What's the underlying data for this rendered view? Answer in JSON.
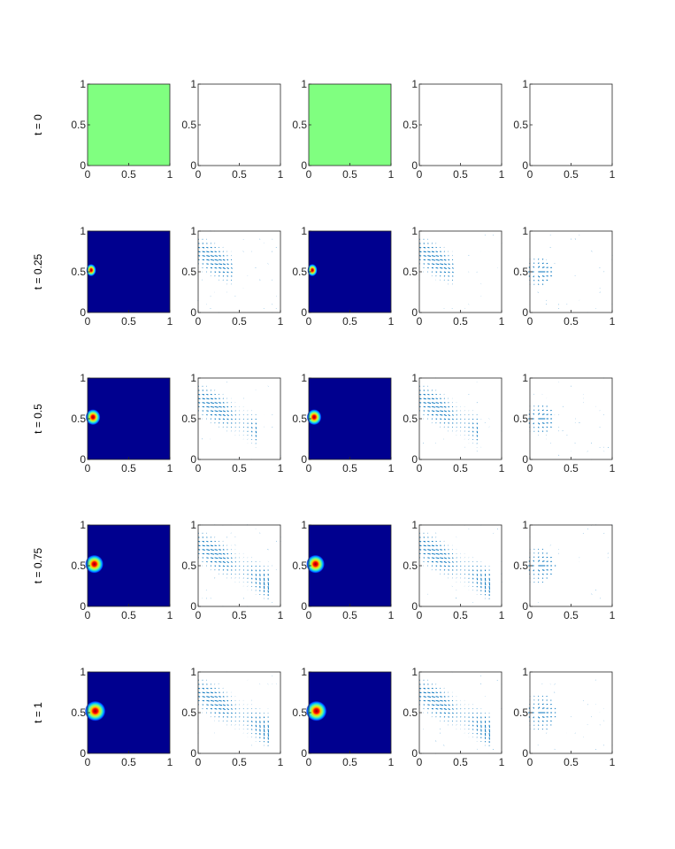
{
  "chart_data": {
    "type": "image-grid",
    "title": "",
    "rows": [
      {
        "label": "t = 0",
        "t": 0
      },
      {
        "label": "t = 0.25",
        "t": 0.25
      },
      {
        "label": "t = 0.5",
        "t": 0.5
      },
      {
        "label": "t = 0.75",
        "t": 0.75
      },
      {
        "label": "t = 1",
        "t": 1
      }
    ],
    "columns": [
      {
        "kind": "field"
      },
      {
        "kind": "quiver",
        "pattern": "s-curve"
      },
      {
        "kind": "field"
      },
      {
        "kind": "quiver",
        "pattern": "s-curve"
      },
      {
        "kind": "quiver",
        "pattern": "left-source"
      }
    ],
    "axes": {
      "xlim": [
        0,
        1
      ],
      "ylim": [
        0,
        1
      ],
      "xticks": [
        0,
        0.5,
        1
      ],
      "yticks": [
        0,
        0.5,
        1
      ],
      "xtick_labels": [
        "0",
        "0.5",
        "1"
      ],
      "ytick_labels": [
        "0",
        "0.5",
        "1"
      ]
    },
    "initial_field_color": "#80ff80",
    "field_background_color": "#00008f",
    "quiver_color": "#0072bd",
    "source": {
      "x": 0,
      "y": 0.52,
      "radius_growth": [
        0,
        0.08,
        0.12,
        0.15,
        0.17
      ]
    }
  }
}
